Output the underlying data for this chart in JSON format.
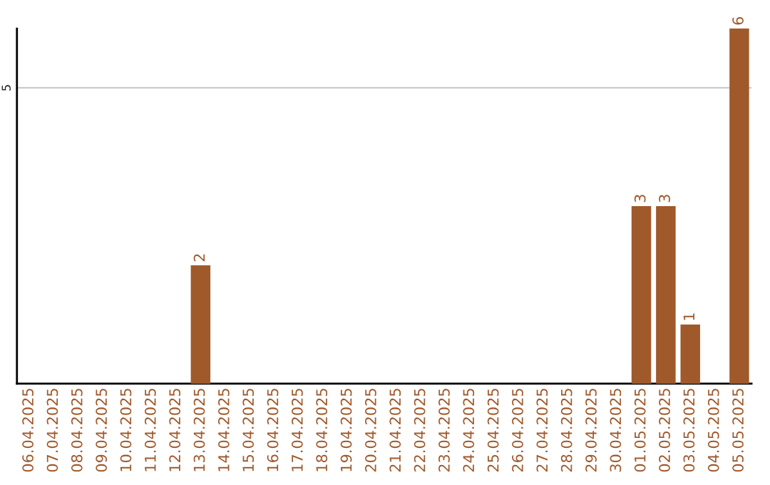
{
  "chart_data": {
    "type": "bar",
    "categories": [
      "06.04.2025",
      "07.04.2025",
      "08.04.2025",
      "09.04.2025",
      "10.04.2025",
      "11.04.2025",
      "12.04.2025",
      "13.04.2025",
      "14.04.2025",
      "15.04.2025",
      "16.04.2025",
      "17.04.2025",
      "18.04.2025",
      "19.04.2025",
      "20.04.2025",
      "21.04.2025",
      "22.04.2025",
      "23.04.2025",
      "24.04.2025",
      "25.04.2025",
      "26.04.2025",
      "27.04.2025",
      "28.04.2025",
      "29.04.2025",
      "30.04.2025",
      "01.05.2025",
      "02.05.2025",
      "03.05.2025",
      "04.05.2025",
      "05.05.2025"
    ],
    "values": [
      null,
      null,
      null,
      null,
      null,
      null,
      null,
      2,
      null,
      null,
      null,
      null,
      null,
      null,
      null,
      null,
      null,
      null,
      null,
      null,
      null,
      null,
      null,
      null,
      null,
      3,
      3,
      1,
      null,
      6
    ],
    "value_labels": [
      null,
      null,
      null,
      null,
      null,
      null,
      null,
      "2",
      null,
      null,
      null,
      null,
      null,
      null,
      null,
      null,
      null,
      null,
      null,
      null,
      null,
      null,
      null,
      null,
      null,
      "3",
      "3",
      "1",
      null,
      "6"
    ],
    "color": "#a0592a",
    "ylim": [
      0,
      6
    ],
    "yticks": [
      5
    ],
    "grid": "y"
  }
}
